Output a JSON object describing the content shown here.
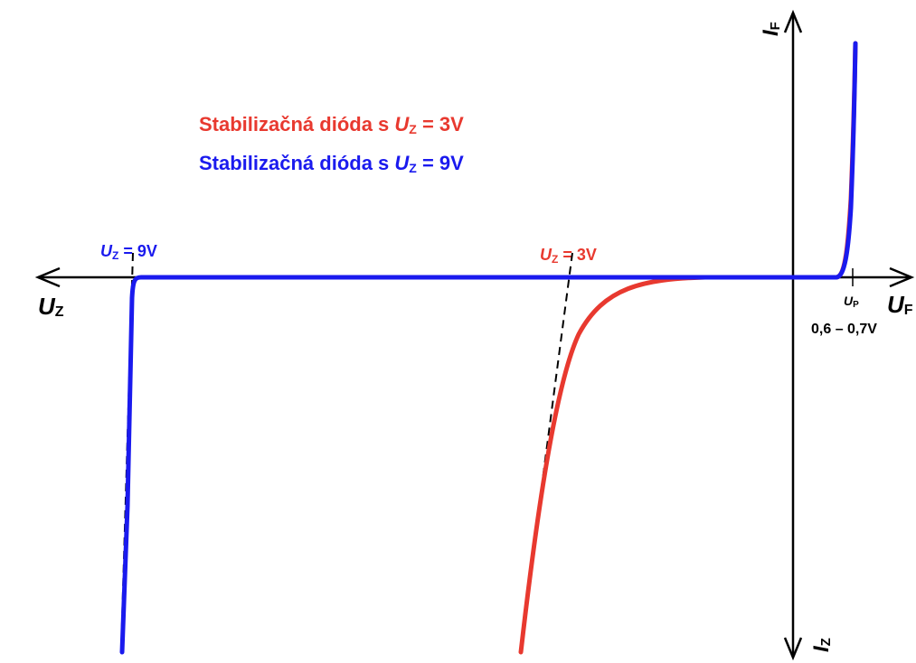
{
  "chart_data": {
    "type": "line",
    "title": "",
    "axes": {
      "x_negative_label": {
        "main": "U",
        "sub": "Z"
      },
      "x_positive_label": {
        "main": "U",
        "sub": "F"
      },
      "y_positive_label": {
        "main": "I",
        "sub": "F"
      },
      "y_negative_label": {
        "main": "I",
        "sub": "Z"
      }
    },
    "legend": {
      "placement": "top-left",
      "entries": [
        {
          "prefix": "Stabilizačná dióda s ",
          "var": "U",
          "sub": "Z",
          "suffix": " = 3V",
          "color": "#e8392f"
        },
        {
          "prefix": "Stabilizačná dióda s ",
          "var": "U",
          "sub": "Z",
          "suffix": " = 9V",
          "color": "#1a1aee"
        }
      ]
    },
    "annotations": {
      "uz9": {
        "var": "U",
        "sub": "Z",
        "text": " = 9V",
        "color": "#1a1aee",
        "voltage": -9
      },
      "uz3": {
        "var": "U",
        "sub": "Z",
        "text": " = 3V",
        "color": "#e8392f",
        "voltage": -3
      },
      "up": {
        "var": "U",
        "sub": "P",
        "range": "0,6 – 0,7V",
        "color": "#000000",
        "voltage": 0.65
      }
    },
    "series": [
      {
        "name": "Stabilizačná dióda s UZ = 3V",
        "color": "#e8392f",
        "zener_voltage": -3
      },
      {
        "name": "Stabilizačná dióda s UZ = 9V",
        "color": "#1a1aee",
        "zener_voltage": -9
      }
    ],
    "grid": false,
    "tangent_lines": {
      "style": "dashed",
      "color": "#000000"
    }
  }
}
